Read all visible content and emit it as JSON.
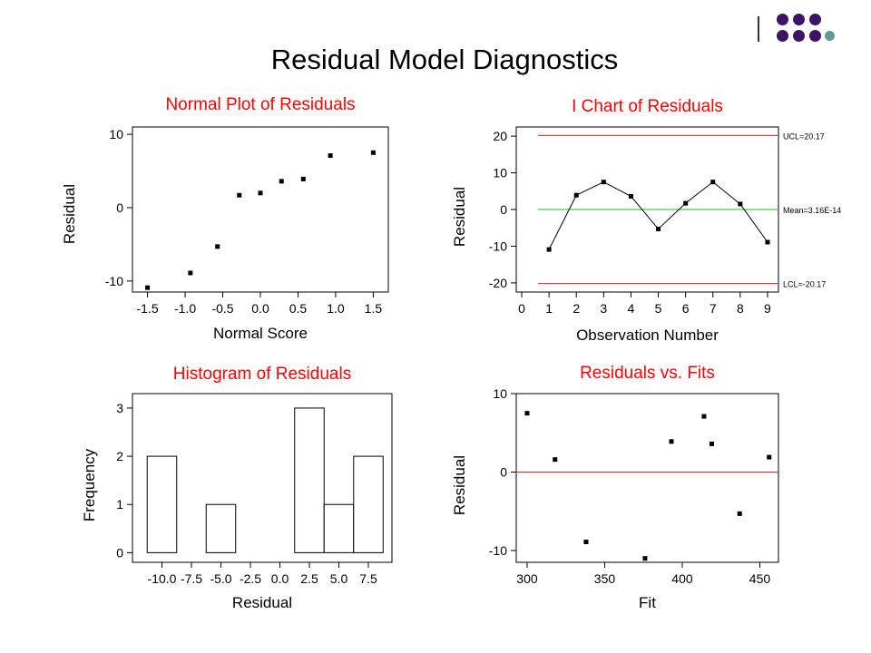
{
  "slide": {
    "title": "Residual Model Diagnostics",
    "colors": {
      "title_text": "#000000",
      "chart_title": "#ff0000",
      "deco_purple": "#3b1466",
      "deco_teal": "#5f9b95",
      "ref_red": "#e02020",
      "ref_green": "#22bb22"
    }
  },
  "decor": {
    "icon": "dots-logo-icon"
  },
  "chart_data": [
    {
      "id": "normal",
      "type": "scatter",
      "title": "Normal Plot of Residuals",
      "xlabel": "Normal Score",
      "ylabel": "Residual",
      "xlim": [
        -1.7,
        1.7
      ],
      "ylim": [
        -11.5,
        11
      ],
      "xticks": [
        -1.5,
        -1.0,
        -0.5,
        0.0,
        0.5,
        1.0,
        1.5
      ],
      "xtick_labels": [
        "-1.5",
        "-1.0",
        "-0.5",
        "0.0",
        "0.5",
        "1.0",
        "1.5"
      ],
      "yticks": [
        10,
        0,
        -10
      ],
      "ytick_labels": [
        "10",
        "0",
        "-10"
      ],
      "points": [
        {
          "x": -1.5,
          "y": -10.9
        },
        {
          "x": -0.93,
          "y": -8.9
        },
        {
          "x": -0.57,
          "y": -5.3
        },
        {
          "x": -0.28,
          "y": 1.7
        },
        {
          "x": 0.0,
          "y": 2.0
        },
        {
          "x": 0.28,
          "y": 3.6
        },
        {
          "x": 0.57,
          "y": 3.9
        },
        {
          "x": 0.93,
          "y": 7.1
        },
        {
          "x": 1.5,
          "y": 7.5
        }
      ]
    },
    {
      "id": "ichart",
      "type": "line",
      "title": "I Chart of Residuals",
      "xlabel": "Observation Number",
      "ylabel": "Residual",
      "xlim": [
        -0.2,
        9.4
      ],
      "ylim": [
        -22.5,
        22.5
      ],
      "xticks": [
        0,
        1,
        2,
        3,
        4,
        5,
        6,
        7,
        8,
        9
      ],
      "xtick_labels": [
        "0",
        "1",
        "2",
        "3",
        "4",
        "5",
        "6",
        "7",
        "8",
        "9"
      ],
      "yticks": [
        20,
        10,
        0,
        -10,
        -20
      ],
      "ytick_labels": [
        "20",
        "10",
        "0",
        "-10",
        "-20"
      ],
      "points": [
        {
          "x": 1,
          "y": -10.9
        },
        {
          "x": 2,
          "y": 3.9
        },
        {
          "x": 3,
          "y": 7.5
        },
        {
          "x": 4,
          "y": 3.6
        },
        {
          "x": 5,
          "y": -5.3
        },
        {
          "x": 6,
          "y": 1.7
        },
        {
          "x": 7,
          "y": 7.5
        },
        {
          "x": 8,
          "y": 1.5
        },
        {
          "x": 9,
          "y": -8.9
        }
      ],
      "reference_lines": [
        {
          "y": 20.17,
          "label": "UCL=20.17",
          "color": "#e02020"
        },
        {
          "y": 0,
          "label": "Mean=3.16E-14",
          "color": "#22bb22"
        },
        {
          "y": -20.17,
          "label": "LCL=-20.17",
          "color": "#e02020"
        }
      ],
      "ref_xrange": [
        0.6,
        9.4
      ]
    },
    {
      "id": "histogram",
      "type": "bar",
      "title": "Histogram of Residuals",
      "xlabel": "Residual",
      "ylabel": "Frequency",
      "xlim": [
        -12.5,
        9.5
      ],
      "ylim": [
        -0.2,
        3.3
      ],
      "xticks": [
        -10.0,
        -7.5,
        -5.0,
        -2.5,
        0.0,
        2.5,
        5.0,
        7.5
      ],
      "xtick_labels": [
        "-10.0",
        "-7.5",
        "-5.0",
        "-2.5",
        "0.0",
        "2.5",
        "5.0",
        "7.5"
      ],
      "yticks": [
        3,
        2,
        1,
        0
      ],
      "ytick_labels": [
        "3",
        "2",
        "1",
        "0"
      ],
      "bin_centers": [
        -10.0,
        -7.5,
        -5.0,
        -2.5,
        0.0,
        2.5,
        5.0,
        7.5
      ],
      "values": [
        2,
        0,
        1,
        0,
        0,
        3,
        1,
        2
      ],
      "bin_width": 2.5
    },
    {
      "id": "fits",
      "type": "scatter",
      "title": "Residuals vs. Fits",
      "xlabel": "Fit",
      "ylabel": "Residual",
      "xlim": [
        293,
        462
      ],
      "ylim": [
        -11.5,
        10
      ],
      "xticks": [
        300,
        350,
        400,
        450
      ],
      "xtick_labels": [
        "300",
        "350",
        "400",
        "450"
      ],
      "yticks": [
        10,
        0,
        -10
      ],
      "ytick_labels": [
        "10",
        "0",
        "-10"
      ],
      "points": [
        {
          "x": 300,
          "y": 7.5
        },
        {
          "x": 318,
          "y": 1.6
        },
        {
          "x": 338,
          "y": -8.9
        },
        {
          "x": 376,
          "y": -11.0
        },
        {
          "x": 393,
          "y": 3.9
        },
        {
          "x": 414,
          "y": 7.1
        },
        {
          "x": 419,
          "y": 3.6
        },
        {
          "x": 437,
          "y": -5.3
        },
        {
          "x": 456,
          "y": 1.9
        }
      ],
      "reference_lines": [
        {
          "y": 0,
          "label": "",
          "color": "#e02020"
        }
      ]
    }
  ]
}
